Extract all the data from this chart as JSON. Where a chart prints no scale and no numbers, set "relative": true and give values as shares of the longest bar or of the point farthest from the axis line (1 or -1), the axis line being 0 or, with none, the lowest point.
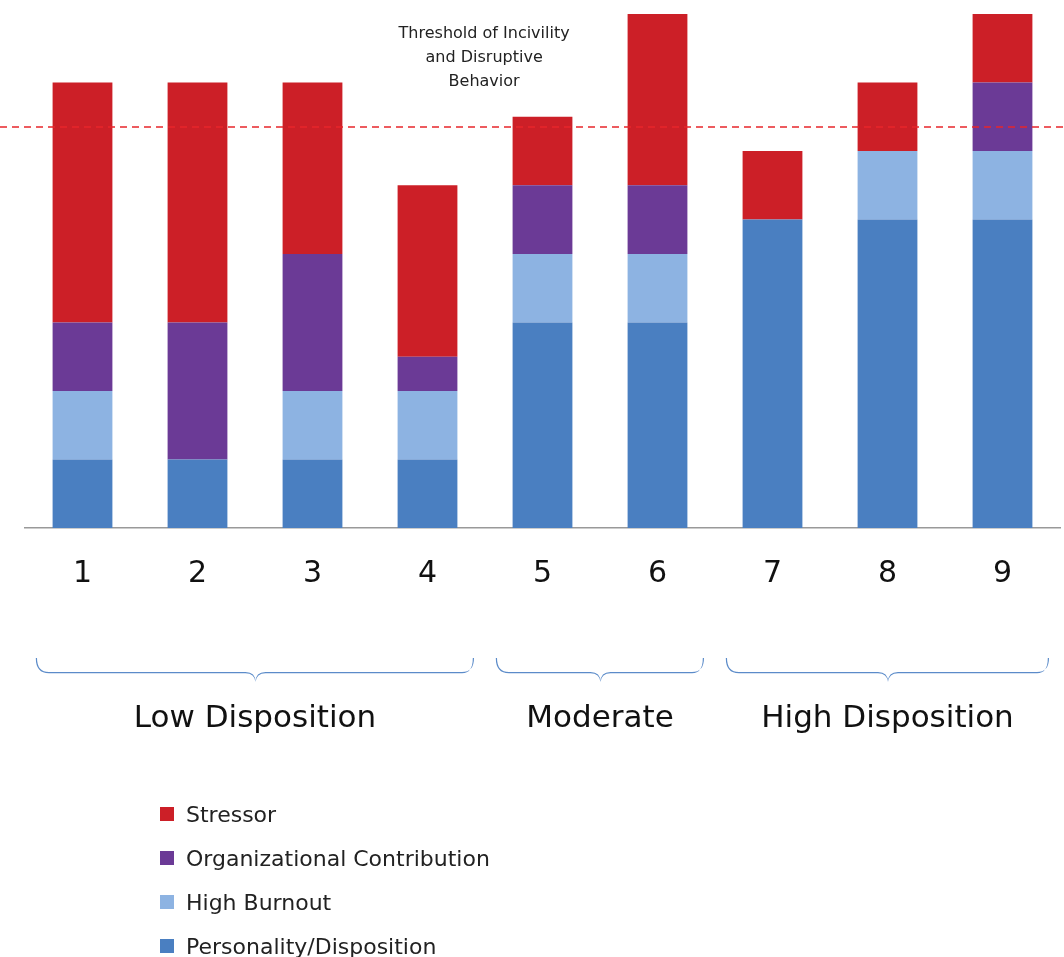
{
  "chart_data": {
    "type": "bar",
    "stacked": true,
    "relative": true,
    "legend": "bottom",
    "categories": [
      "1",
      "2",
      "3",
      "4",
      "5",
      "6",
      "7",
      "8",
      "9"
    ],
    "series": [
      {
        "name": "Personality/Disposition",
        "color": "#4a7fc1",
        "values": [
          0.1333,
          0.1333,
          0.1333,
          0.1333,
          0.4,
          0.4,
          0.6,
          0.6,
          0.6
        ]
      },
      {
        "name": "High Burnout",
        "color": "#8db3e2",
        "values": [
          0.1333,
          0,
          0.1333,
          0.1333,
          0.1333,
          0.1333,
          0,
          0.1333,
          0.1333
        ]
      },
      {
        "name": "Organizational Contribution",
        "color": "#6b3a96",
        "values": [
          0.1333,
          0.2667,
          0.2667,
          0.0667,
          0.1333,
          0.1333,
          0,
          0,
          0.1333
        ]
      },
      {
        "name": "Stressor",
        "color": "#cc1f27",
        "values": [
          0.4667,
          0.4667,
          0.3333,
          0.3333,
          0.1333,
          0.3334,
          0.1333,
          0.1333,
          0.1334
        ]
      }
    ],
    "ref_lines": [
      {
        "axis": "y",
        "value": 0.78,
        "label": "Threshold of Incivility and Disruptive Behavior",
        "color": "#e8262b",
        "line_style": "dashed"
      }
    ],
    "annotations": [
      "Low Disposition",
      "Moderate",
      "High Disposition"
    ]
  }
}
